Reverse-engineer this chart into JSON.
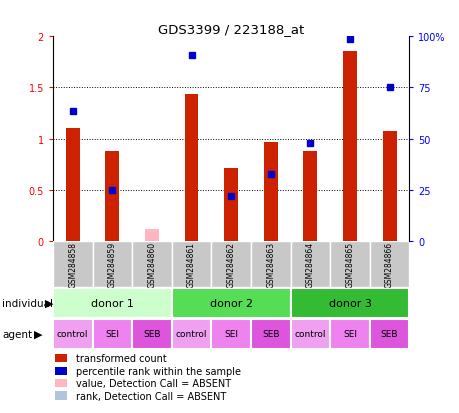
{
  "title": "GDS3399 / 223188_at",
  "samples": [
    "GSM284858",
    "GSM284859",
    "GSM284860",
    "GSM284861",
    "GSM284862",
    "GSM284863",
    "GSM284864",
    "GSM284865",
    "GSM284866"
  ],
  "red_bars": [
    1.1,
    0.88,
    null,
    1.44,
    0.71,
    0.97,
    0.88,
    1.86,
    1.08
  ],
  "pink_bars": [
    null,
    null,
    0.12,
    null,
    null,
    null,
    null,
    null,
    null
  ],
  "blue_dots_left_scale": [
    1.27,
    0.5,
    null,
    1.82,
    0.44,
    0.66,
    0.96,
    1.97,
    1.5
  ],
  "ylim_left": [
    0,
    2
  ],
  "ylim_right": [
    0,
    100
  ],
  "yticks_left": [
    0,
    0.5,
    1.0,
    1.5,
    2.0
  ],
  "yticks_right": [
    0,
    25,
    50,
    75,
    100
  ],
  "ytick_labels_left": [
    "0",
    "0.5",
    "1",
    "1.5",
    "2"
  ],
  "ytick_labels_right": [
    "0",
    "25",
    "50",
    "75",
    "100%"
  ],
  "bar_color": "#cc2200",
  "dot_color": "#0000cc",
  "pink_color": "#ffb6c1",
  "absent_dot_color": "#b0c4de",
  "bar_width": 0.35,
  "sample_bg_color": "#c8c8c8",
  "individual_colors": [
    "#ccffcc",
    "#55dd55",
    "#33bb33"
  ],
  "agent_colors_list": [
    "#ee82ee",
    "#dd66dd",
    "#cc55cc",
    "#ee82ee",
    "#dd66dd",
    "#cc55cc",
    "#ee82ee",
    "#dd66dd",
    "#cc55cc"
  ],
  "individuals": [
    {
      "label": "donor 1",
      "start": 0,
      "end": 3
    },
    {
      "label": "donor 2",
      "start": 3,
      "end": 6
    },
    {
      "label": "donor 3",
      "start": 6,
      "end": 9
    }
  ],
  "agents": [
    "control",
    "SEI",
    "SEB",
    "control",
    "SEI",
    "SEB",
    "control",
    "SEI",
    "SEB"
  ],
  "legend_items": [
    {
      "color": "#cc2200",
      "label": "transformed count"
    },
    {
      "color": "#0000cc",
      "label": "percentile rank within the sample"
    },
    {
      "color": "#ffb6c1",
      "label": "value, Detection Call = ABSENT"
    },
    {
      "color": "#b0c4de",
      "label": "rank, Detection Call = ABSENT"
    }
  ]
}
